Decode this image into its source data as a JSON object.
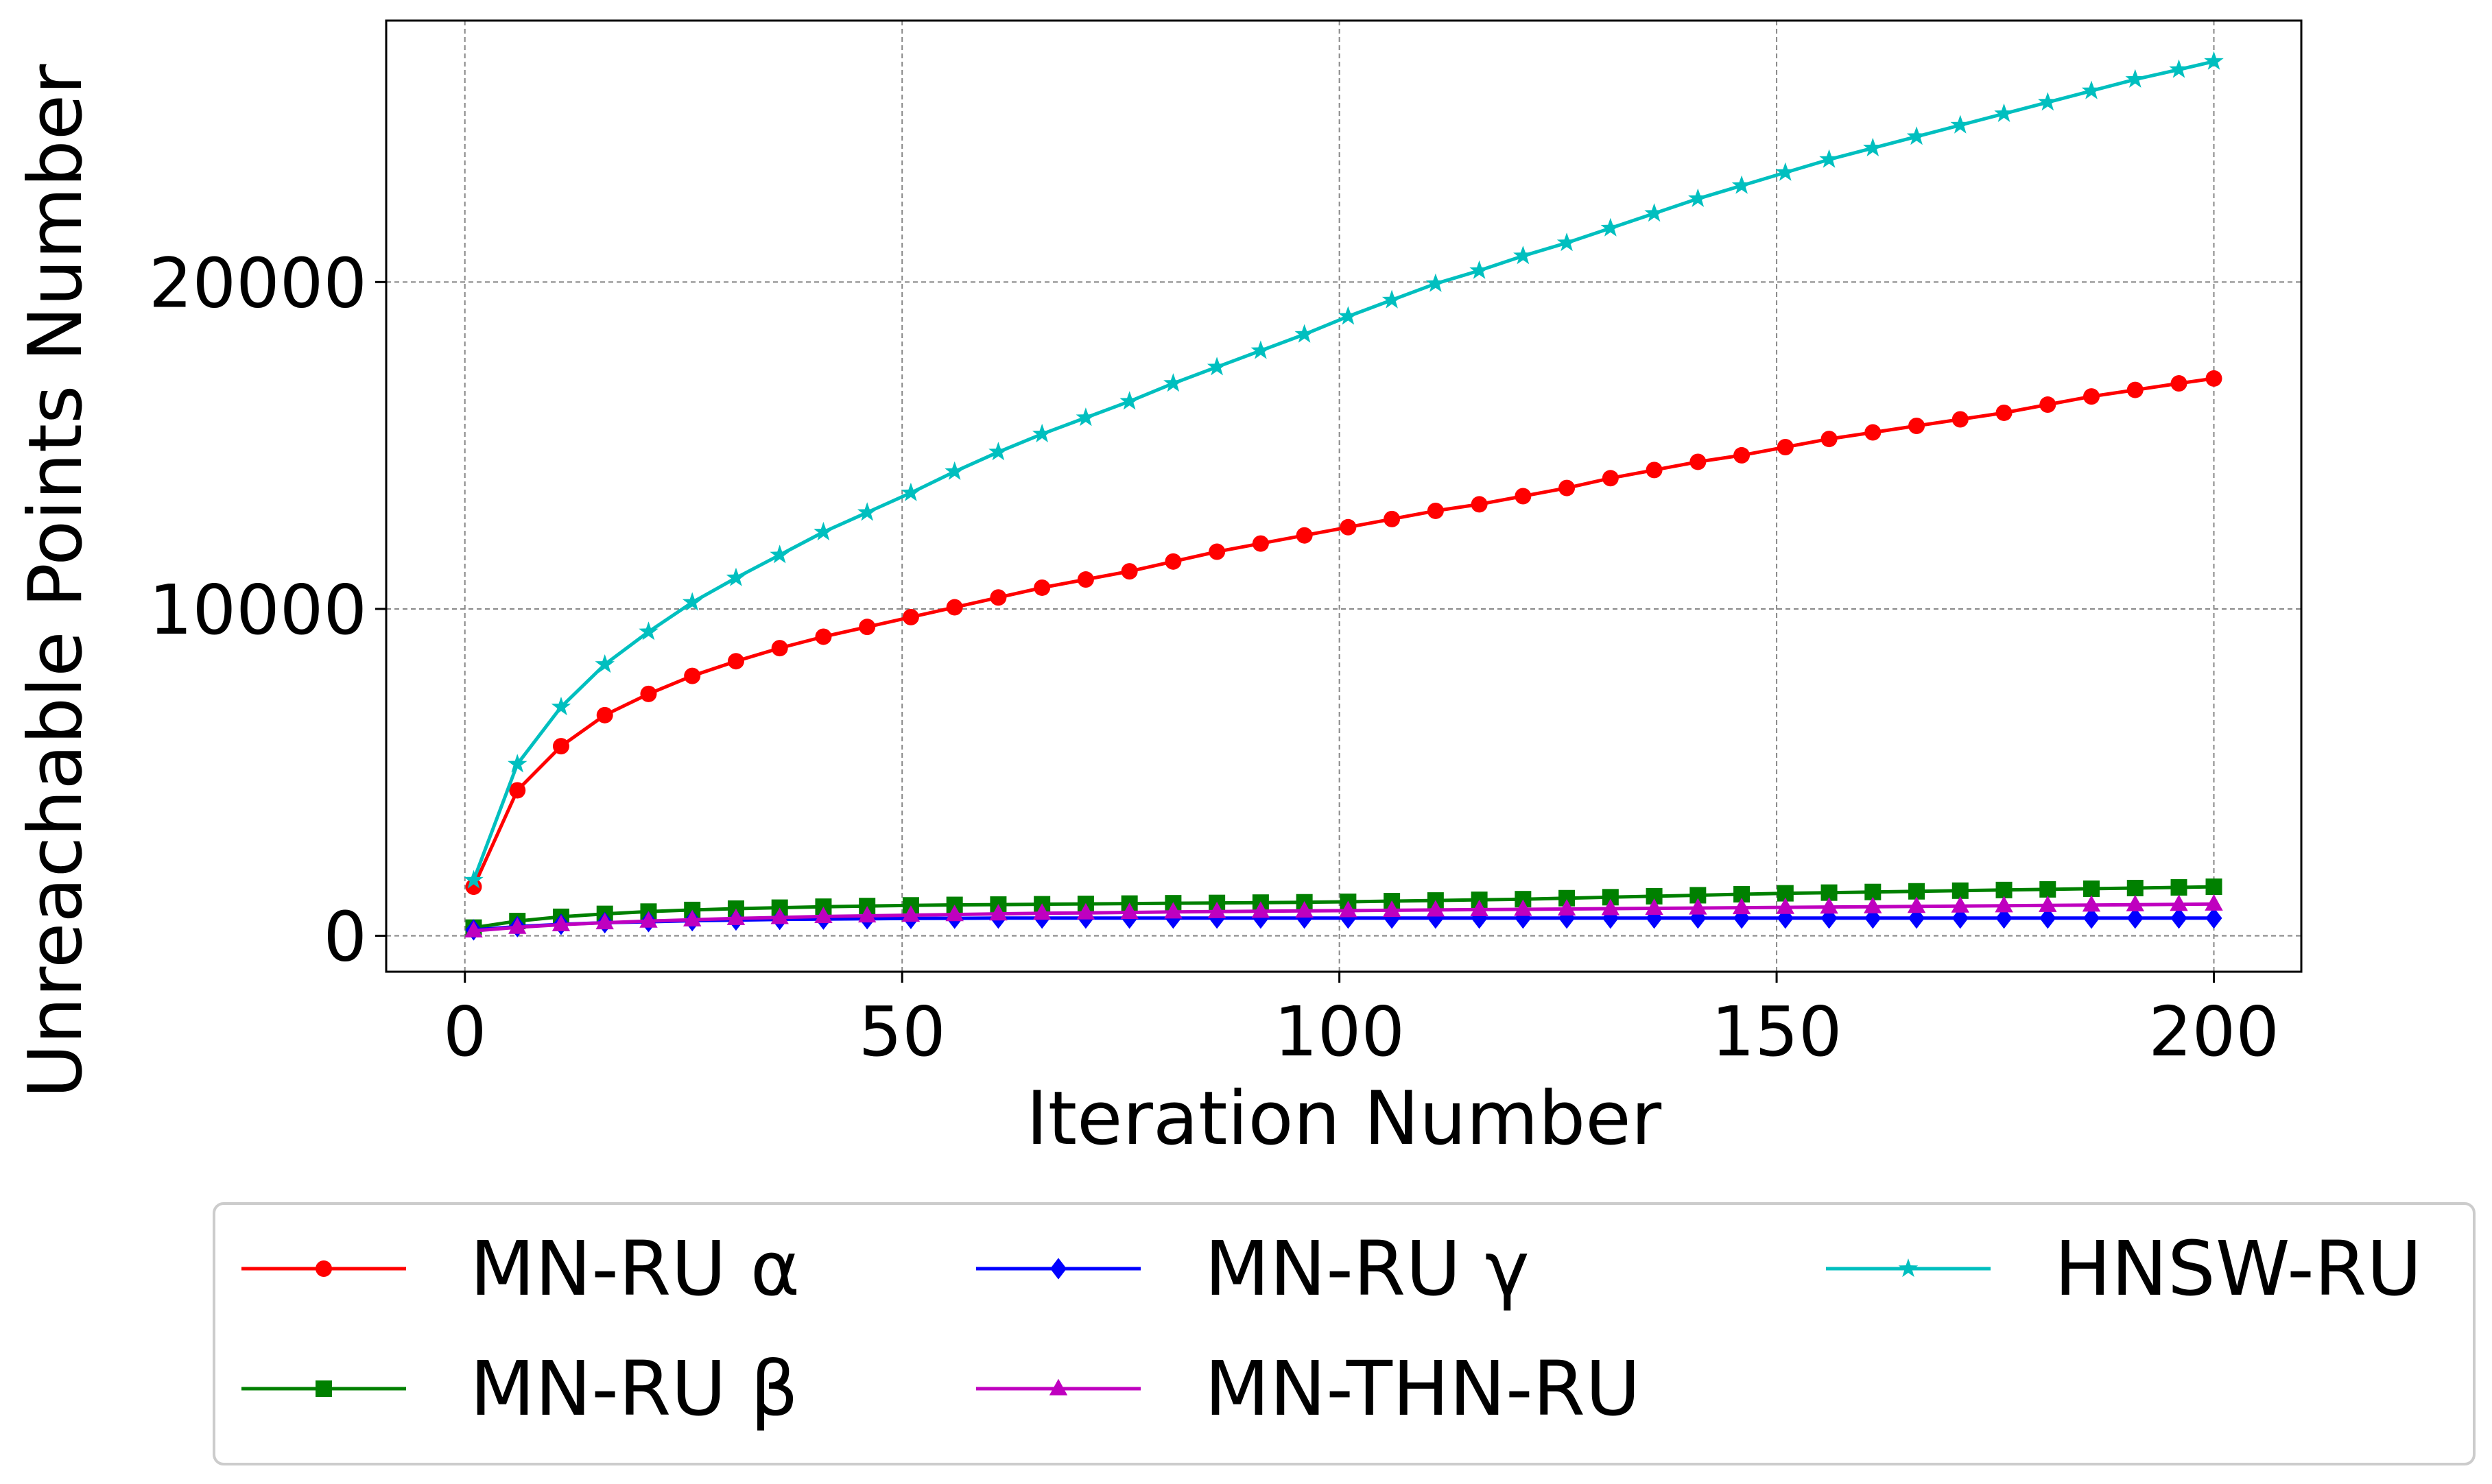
{
  "chart_data": {
    "type": "line",
    "xlabel": "Iteration Number",
    "ylabel": "Unreachable Points Number",
    "xlim": [
      -9,
      210
    ],
    "ylim": [
      -1100,
      28000
    ],
    "xticks": [
      0,
      50,
      100,
      150,
      200
    ],
    "yticks": [
      0,
      10000,
      20000
    ],
    "grid": true,
    "legend_position": "bottom",
    "series": [
      {
        "name": "MN-RU α",
        "color": "#ff0000",
        "marker": "circle",
        "x": [
          1,
          6,
          11,
          16,
          21,
          26,
          31,
          36,
          41,
          46,
          51,
          56,
          61,
          66,
          71,
          76,
          81,
          86,
          91,
          96,
          101,
          106,
          111,
          116,
          121,
          126,
          131,
          136,
          141,
          146,
          151,
          156,
          161,
          166,
          171,
          176,
          181,
          186,
          191,
          196,
          200
        ],
        "y": [
          1500,
          4450,
          5800,
          6750,
          7400,
          7950,
          8400,
          8800,
          9150,
          9450,
          9750,
          10050,
          10350,
          10650,
          10900,
          11150,
          11450,
          11750,
          12000,
          12250,
          12500,
          12750,
          13000,
          13200,
          13450,
          13700,
          14000,
          14250,
          14500,
          14700,
          14950,
          15200,
          15400,
          15600,
          15800,
          16000,
          16250,
          16500,
          16700,
          16900,
          17050
        ]
      },
      {
        "name": "MN-RU β",
        "color": "#008000",
        "marker": "square",
        "x": [
          1,
          6,
          11,
          16,
          21,
          26,
          31,
          36,
          41,
          46,
          51,
          56,
          61,
          66,
          71,
          76,
          81,
          86,
          91,
          96,
          101,
          106,
          111,
          116,
          121,
          126,
          131,
          136,
          141,
          146,
          151,
          156,
          161,
          166,
          171,
          176,
          181,
          186,
          191,
          196,
          200
        ],
        "y": [
          250,
          450,
          580,
          670,
          740,
          790,
          830,
          860,
          890,
          910,
          930,
          945,
          955,
          965,
          975,
          985,
          995,
          1005,
          1015,
          1025,
          1040,
          1060,
          1080,
          1100,
          1120,
          1150,
          1180,
          1210,
          1240,
          1270,
          1300,
          1320,
          1340,
          1360,
          1380,
          1400,
          1420,
          1440,
          1460,
          1480,
          1500
        ]
      },
      {
        "name": "MN-RU γ",
        "color": "#0000ff",
        "marker": "diamond",
        "x": [
          1,
          6,
          11,
          16,
          21,
          26,
          31,
          36,
          41,
          46,
          51,
          56,
          61,
          66,
          71,
          76,
          81,
          86,
          91,
          96,
          101,
          106,
          111,
          116,
          121,
          126,
          131,
          136,
          141,
          146,
          151,
          156,
          161,
          166,
          171,
          176,
          181,
          186,
          191,
          196,
          200
        ],
        "y": [
          180,
          280,
          350,
          400,
          430,
          460,
          480,
          500,
          510,
          520,
          530,
          535,
          540,
          540,
          540,
          540,
          540,
          540,
          540,
          540,
          540,
          540,
          540,
          540,
          540,
          540,
          540,
          540,
          540,
          540,
          540,
          540,
          540,
          540,
          540,
          540,
          540,
          540,
          540,
          540,
          540
        ]
      },
      {
        "name": "MN-THN-RU",
        "color": "#bf00bf",
        "marker": "triangle",
        "x": [
          1,
          6,
          11,
          16,
          21,
          26,
          31,
          36,
          41,
          46,
          51,
          56,
          61,
          66,
          71,
          76,
          81,
          86,
          91,
          96,
          101,
          106,
          111,
          116,
          121,
          126,
          131,
          136,
          141,
          146,
          151,
          156,
          161,
          166,
          171,
          176,
          181,
          186,
          191,
          196,
          200
        ],
        "y": [
          150,
          260,
          340,
          400,
          450,
          490,
          530,
          560,
          590,
          610,
          630,
          650,
          670,
          690,
          700,
          715,
          730,
          740,
          750,
          760,
          770,
          780,
          790,
          800,
          810,
          820,
          830,
          840,
          850,
          860,
          870,
          880,
          890,
          900,
          910,
          920,
          930,
          940,
          950,
          960,
          970
        ]
      },
      {
        "name": "HNSW-RU",
        "color": "#00bfbf",
        "marker": "star",
        "x": [
          1,
          6,
          11,
          16,
          21,
          26,
          31,
          36,
          41,
          46,
          51,
          56,
          61,
          66,
          71,
          76,
          81,
          86,
          91,
          96,
          101,
          106,
          111,
          116,
          121,
          126,
          131,
          136,
          141,
          146,
          151,
          156,
          161,
          166,
          171,
          176,
          181,
          186,
          191,
          196,
          200
        ],
        "y": [
          1700,
          5250,
          7000,
          8300,
          9300,
          10200,
          10950,
          11650,
          12350,
          12950,
          13550,
          14200,
          14800,
          15350,
          15850,
          16350,
          16900,
          17400,
          17900,
          18400,
          18950,
          19450,
          19950,
          20350,
          20800,
          21200,
          21650,
          22100,
          22550,
          22950,
          23350,
          23750,
          24100,
          24450,
          24800,
          25150,
          25500,
          25850,
          26200,
          26500,
          26750
        ]
      }
    ]
  },
  "legend": {
    "items": [
      "MN-RU α",
      "MN-RU γ",
      "HNSW-RU",
      "MN-RU β",
      "MN-THN-RU"
    ]
  }
}
